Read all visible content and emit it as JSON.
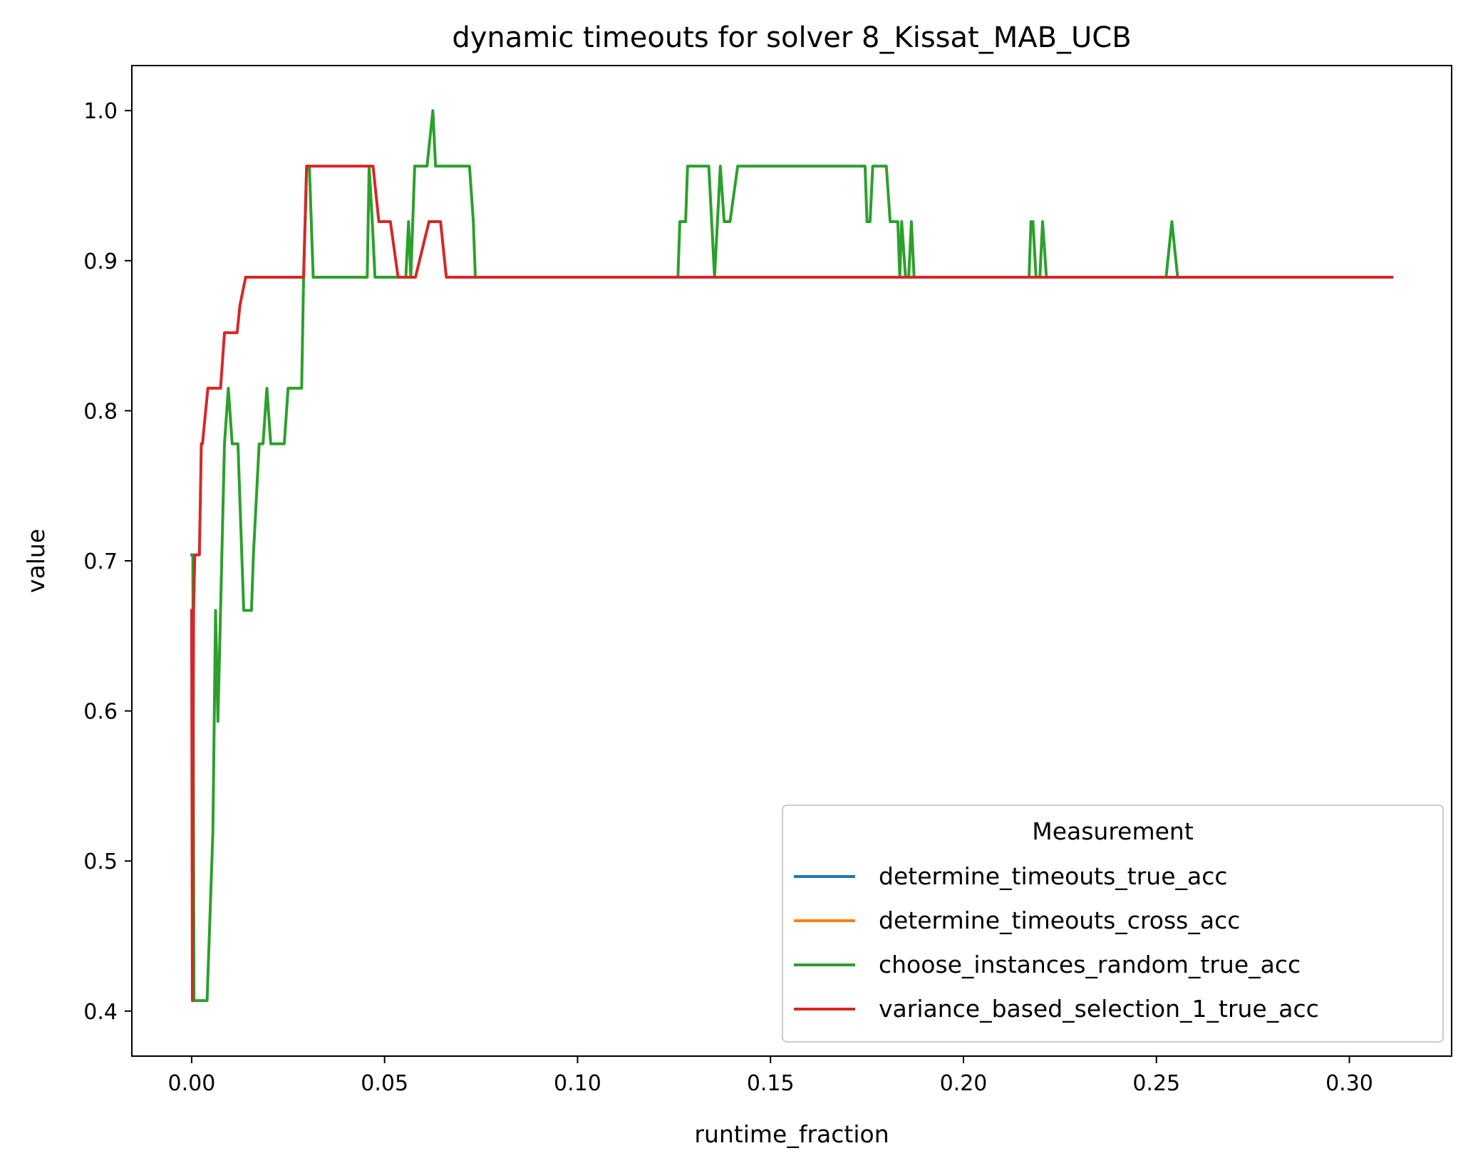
{
  "chart_data": {
    "type": "line",
    "title": "dynamic timeouts for solver 8_Kissat_MAB_UCB",
    "xlabel": "runtime_fraction",
    "ylabel": "value",
    "xlim": [
      -0.0155,
      0.3265
    ],
    "ylim": [
      0.37,
      1.03
    ],
    "xticks": [
      0.0,
      0.05,
      0.1,
      0.15,
      0.2,
      0.25,
      0.3
    ],
    "xtick_labels": [
      "0.00",
      "0.05",
      "0.10",
      "0.15",
      "0.20",
      "0.25",
      "0.30"
    ],
    "yticks": [
      0.4,
      0.5,
      0.6,
      0.7,
      0.8,
      0.9,
      1.0
    ],
    "ytick_labels": [
      "0.4",
      "0.5",
      "0.6",
      "0.7",
      "0.8",
      "0.9",
      "1.0"
    ],
    "grid": false,
    "legend": {
      "title": "Measurement",
      "placement": "lower right"
    },
    "series": [
      {
        "name": "determine_timeouts_true_acc",
        "color": "#1f77b4",
        "x": [],
        "y": []
      },
      {
        "name": "determine_timeouts_cross_acc",
        "color": "#ff7f0e",
        "x": [],
        "y": []
      },
      {
        "name": "choose_instances_random_true_acc",
        "color": "#2ca02c",
        "x": [
          0.0,
          0.0003,
          0.0006,
          0.004,
          0.0055,
          0.0062,
          0.0068,
          0.0075,
          0.0085,
          0.0095,
          0.0105,
          0.012,
          0.0135,
          0.0155,
          0.016,
          0.0175,
          0.0185,
          0.0195,
          0.0205,
          0.024,
          0.025,
          0.0285,
          0.029,
          0.0298,
          0.0305,
          0.0315,
          0.0325,
          0.0455,
          0.046,
          0.0468,
          0.0475,
          0.0555,
          0.0562,
          0.0568,
          0.0578,
          0.061,
          0.0625,
          0.0632,
          0.0645,
          0.072,
          0.073,
          0.0735,
          0.126,
          0.1265,
          0.128,
          0.1285,
          0.1305,
          0.134,
          0.1355,
          0.137,
          0.138,
          0.1395,
          0.1415,
          0.1745,
          0.175,
          0.1758,
          0.1765,
          0.1775,
          0.18,
          0.181,
          0.183,
          0.1835,
          0.184,
          0.185,
          0.1858,
          0.1865,
          0.1872,
          0.217,
          0.2175,
          0.218,
          0.2188,
          0.2198,
          0.2205,
          0.2215,
          0.2525,
          0.254,
          0.2555,
          0.2565,
          0.311
        ],
        "y": [
          0.704,
          0.704,
          0.407,
          0.407,
          0.519,
          0.667,
          0.593,
          0.667,
          0.778,
          0.815,
          0.778,
          0.778,
          0.667,
          0.667,
          0.704,
          0.778,
          0.778,
          0.815,
          0.778,
          0.778,
          0.815,
          0.815,
          0.889,
          0.963,
          0.963,
          0.889,
          0.889,
          0.889,
          0.963,
          0.926,
          0.889,
          0.889,
          0.926,
          0.889,
          0.963,
          0.963,
          1.0,
          0.963,
          0.963,
          0.963,
          0.926,
          0.889,
          0.889,
          0.926,
          0.926,
          0.963,
          0.963,
          0.963,
          0.889,
          0.963,
          0.926,
          0.926,
          0.963,
          0.963,
          0.926,
          0.926,
          0.963,
          0.963,
          0.963,
          0.926,
          0.926,
          0.889,
          0.926,
          0.889,
          0.889,
          0.926,
          0.889,
          0.889,
          0.926,
          0.926,
          0.889,
          0.889,
          0.926,
          0.889,
          0.889,
          0.926,
          0.889,
          0.889,
          0.889
        ]
      },
      {
        "name": "variance_based_selection_1_true_acc",
        "color": "#d62728",
        "x": [
          0.0,
          0.0002,
          0.0005,
          0.0008,
          0.0012,
          0.002,
          0.0025,
          0.0028,
          0.0042,
          0.0048,
          0.0075,
          0.0085,
          0.0095,
          0.0118,
          0.0125,
          0.014,
          0.015,
          0.029,
          0.0298,
          0.046,
          0.047,
          0.0485,
          0.0515,
          0.0535,
          0.0575,
          0.058,
          0.0615,
          0.0625,
          0.0635,
          0.0645,
          0.066,
          0.311
        ],
        "y": [
          0.667,
          0.407,
          0.667,
          0.704,
          0.704,
          0.704,
          0.778,
          0.778,
          0.815,
          0.815,
          0.815,
          0.852,
          0.852,
          0.852,
          0.87,
          0.889,
          0.889,
          0.889,
          0.963,
          0.963,
          0.963,
          0.926,
          0.926,
          0.889,
          0.889,
          0.889,
          0.926,
          0.926,
          0.926,
          0.926,
          0.889,
          0.889
        ]
      }
    ]
  }
}
